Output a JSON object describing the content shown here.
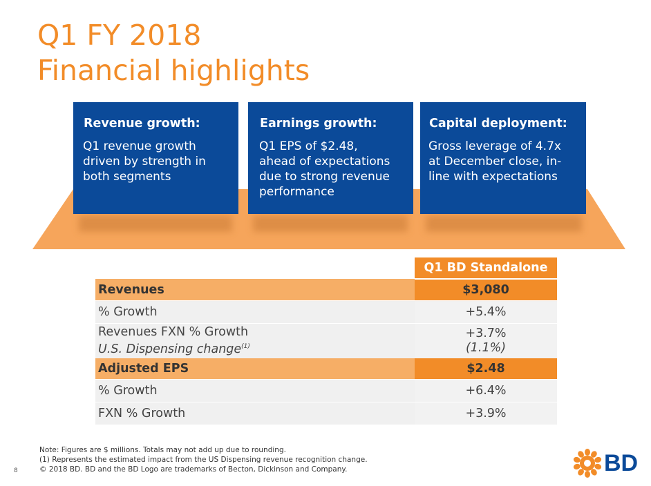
{
  "title": {
    "line1": "Q1 FY 2018",
    "line2": "Financial highlights"
  },
  "cards": [
    {
      "heading": "Revenue growth:",
      "lines": [
        "Q1 revenue growth",
        "driven by strength in",
        "both segments"
      ]
    },
    {
      "heading": "Earnings growth:",
      "lines": [
        "Q1 EPS of $2.48,",
        "ahead of expectations",
        "due to strong revenue",
        "performance"
      ]
    },
    {
      "heading": "Capital deployment:",
      "lines": [
        "Gross leverage of 4.7x",
        "at December close, in-",
        "line with expectations"
      ]
    }
  ],
  "table": {
    "column_header": "Q1 BD Standalone",
    "rows": [
      {
        "label": "Revenues",
        "value": "$3,080"
      },
      {
        "label": "% Growth",
        "value": "+5.4%"
      },
      {
        "label": "Revenues FXN % Growth",
        "sublabel": "U.S. Dispensing change",
        "sup": "(1)",
        "value": "+3.7%",
        "subvalue": "(1.1%)"
      },
      {
        "label": "Adjusted EPS",
        "value": "$2.48"
      },
      {
        "label": "% Growth",
        "value": "+6.4%"
      },
      {
        "label": "FXN % Growth",
        "value": "+3.9%"
      }
    ]
  },
  "notes": [
    "Note: Figures are $ millions. Totals may not add up due to rounding.",
    "(1)  Represents the estimated impact from the US Dispensing revenue recognition change.",
    "© 2018 BD. BD and the BD Logo are trademarks of Becton, Dickinson and Company."
  ],
  "page_number": "8",
  "logo": {
    "text": "BD",
    "icon": "bd-sunburst-icon"
  },
  "colors": {
    "orange": "#F28C28",
    "light_orange": "#F6AE66",
    "navy": "#0B4A99",
    "grey_row": "#F0F0F0"
  }
}
